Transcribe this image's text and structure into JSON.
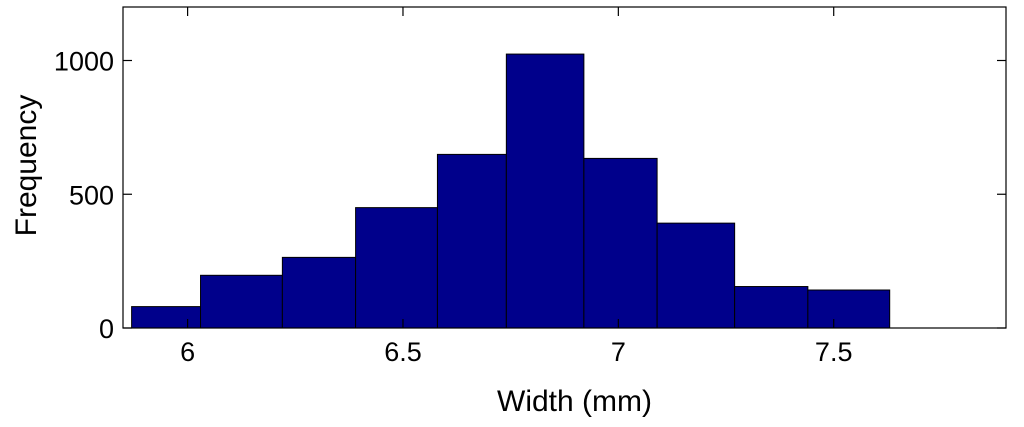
{
  "chart_data": {
    "type": "bar",
    "title": "",
    "xlabel": "Width (mm)",
    "ylabel": "Frequency",
    "xlim": [
      5.85,
      7.9
    ],
    "ylim": [
      0,
      1200
    ],
    "xticks": [
      {
        "value": 6,
        "label": "6"
      },
      {
        "value": 6.5,
        "label": "6.5"
      },
      {
        "value": 7,
        "label": "7"
      },
      {
        "value": 7.5,
        "label": "7.5"
      }
    ],
    "yticks": [
      {
        "value": 0,
        "label": "0"
      },
      {
        "value": 500,
        "label": "500"
      },
      {
        "value": 1000,
        "label": "1000"
      }
    ],
    "bin_edges": [
      5.87,
      6.03,
      6.22,
      6.39,
      6.58,
      6.74,
      6.92,
      7.09,
      7.27,
      7.44,
      7.63
    ],
    "values": [
      80,
      197,
      264,
      450,
      649,
      1024,
      634,
      392,
      155,
      142
    ],
    "bar_color": "#00008b",
    "grid": false,
    "legend": "none"
  }
}
